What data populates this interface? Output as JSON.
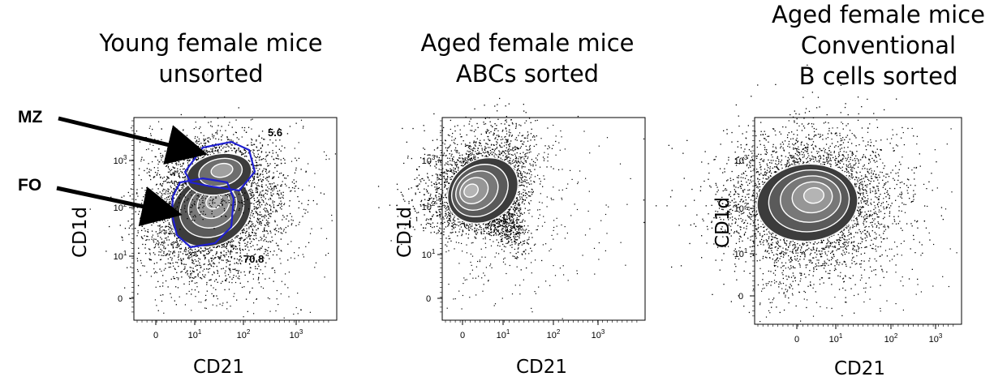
{
  "chart_data": [
    {
      "type": "scatter",
      "title_lines": [
        "Young female mice",
        "unsorted"
      ],
      "xlabel": "CD21",
      "ylabel": "CD1d",
      "x_ticks": [
        "0",
        "10^1",
        "10^2",
        "10^3"
      ],
      "y_ticks": [
        "0",
        "10^1",
        "10^2",
        "10^3"
      ],
      "gates": [
        {
          "name": "MZ",
          "percent": "5.6"
        },
        {
          "name": "FO",
          "percent": "70.8"
        }
      ],
      "gate_color": "#1f1fd0"
    },
    {
      "type": "scatter",
      "title_lines": [
        "Aged female mice",
        "ABCs sorted"
      ],
      "xlabel": "CD21",
      "ylabel": "CD1d",
      "x_ticks": [
        "0",
        "10^1",
        "10^2",
        "10^3"
      ],
      "y_ticks": [
        "0",
        "10^1",
        "10^2",
        "10^3"
      ]
    },
    {
      "type": "scatter",
      "title_lines": [
        "Aged female mice",
        "Conventional",
        "B cells sorted"
      ],
      "xlabel": "CD21",
      "ylabel": "CD1d",
      "x_ticks": [
        "0",
        "10^1",
        "10^2",
        "10^3"
      ],
      "y_ticks": [
        "0",
        "10^1",
        "10^2",
        "10^3"
      ]
    }
  ]
}
